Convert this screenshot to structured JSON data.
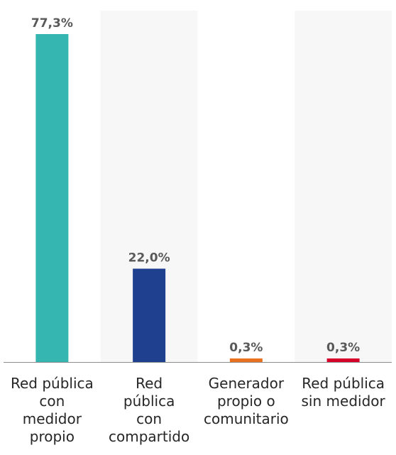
{
  "chart_data": {
    "type": "bar",
    "categories": [
      "Red pública con medidor propio",
      "Red pública con compartido",
      "Generador propio o comunitario",
      "Red pública sin medidor"
    ],
    "category_lines": [
      [
        "Red pública",
        "con",
        "medidor",
        "propio"
      ],
      [
        "Red",
        "pública",
        "con",
        "compartido"
      ],
      [
        "Generador",
        "propio o",
        "comunitario"
      ],
      [
        "Red pública",
        "sin medidor"
      ]
    ],
    "values": [
      77.3,
      22.0,
      0.3,
      0.3
    ],
    "value_labels": [
      "77,3%",
      "22,0%",
      "0,3%",
      "0,3%"
    ],
    "colors": [
      "#35b6b0",
      "#1f3f8f",
      "#e8701e",
      "#d7002a"
    ],
    "ylim": [
      0,
      80
    ],
    "grid": false,
    "legend": "none",
    "title": "",
    "xlabel": "",
    "ylabel": ""
  }
}
